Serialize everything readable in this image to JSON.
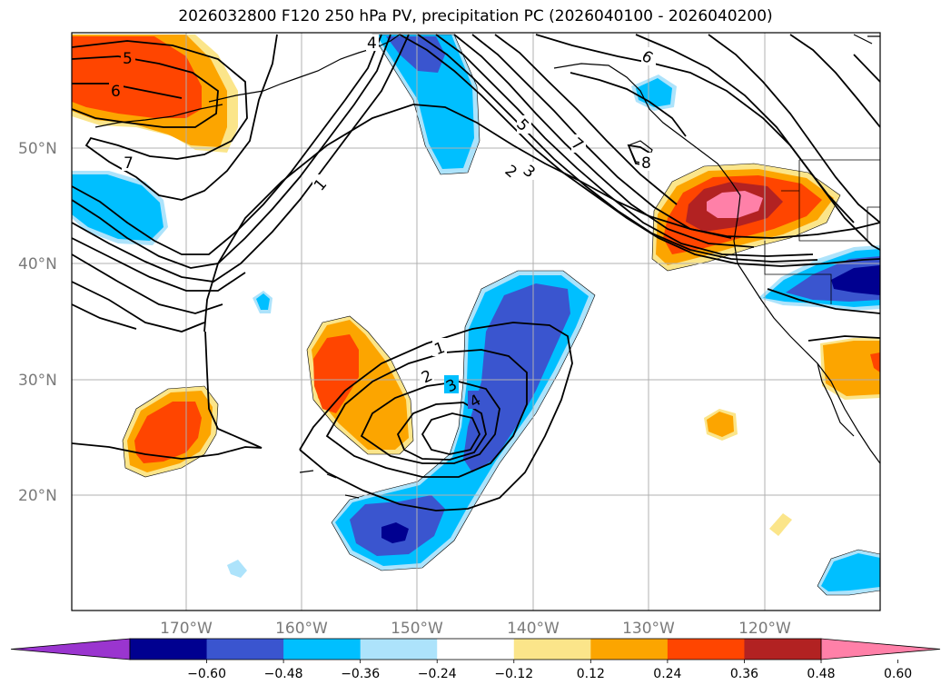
{
  "title": "2026032800 F120 250 hPa PV, precipitation PC (2026040100 - 2026040200)",
  "lat_labels": [
    "50°N",
    "40°N",
    "30°N",
    "20°N"
  ],
  "lon_labels": [
    "170°W",
    "160°W",
    "150°W",
    "140°W",
    "130°W",
    "120°W"
  ],
  "colorbar": {
    "ticks": [
      "−0.60",
      "−0.48",
      "−0.36",
      "−0.24",
      "−0.12",
      "0.12",
      "0.24",
      "0.36",
      "0.48",
      "0.60"
    ],
    "colors": [
      "#9a35cf",
      "#000090",
      "#3a55cf",
      "#00bfff",
      "#ade3fb",
      "#ffffff",
      "#fbe58a",
      "#fca500",
      "#ff4500",
      "#b22222",
      "#ff80a8"
    ]
  },
  "contour_labels": [
    "5",
    "6",
    "7",
    "1",
    "4",
    "5",
    "2",
    "3",
    "7",
    "6",
    "8",
    "1",
    "2",
    "3",
    "4"
  ],
  "colors": {
    "pos_orange": "#fca500",
    "pos_red": "#ff4500",
    "pos_darkred": "#b22222",
    "pos_pink": "#ff80a8",
    "neg_cyan": "#00bfff",
    "neg_blue": "#3a55cf",
    "neg_navy": "#000090",
    "grid": "#b0b0b0"
  }
}
